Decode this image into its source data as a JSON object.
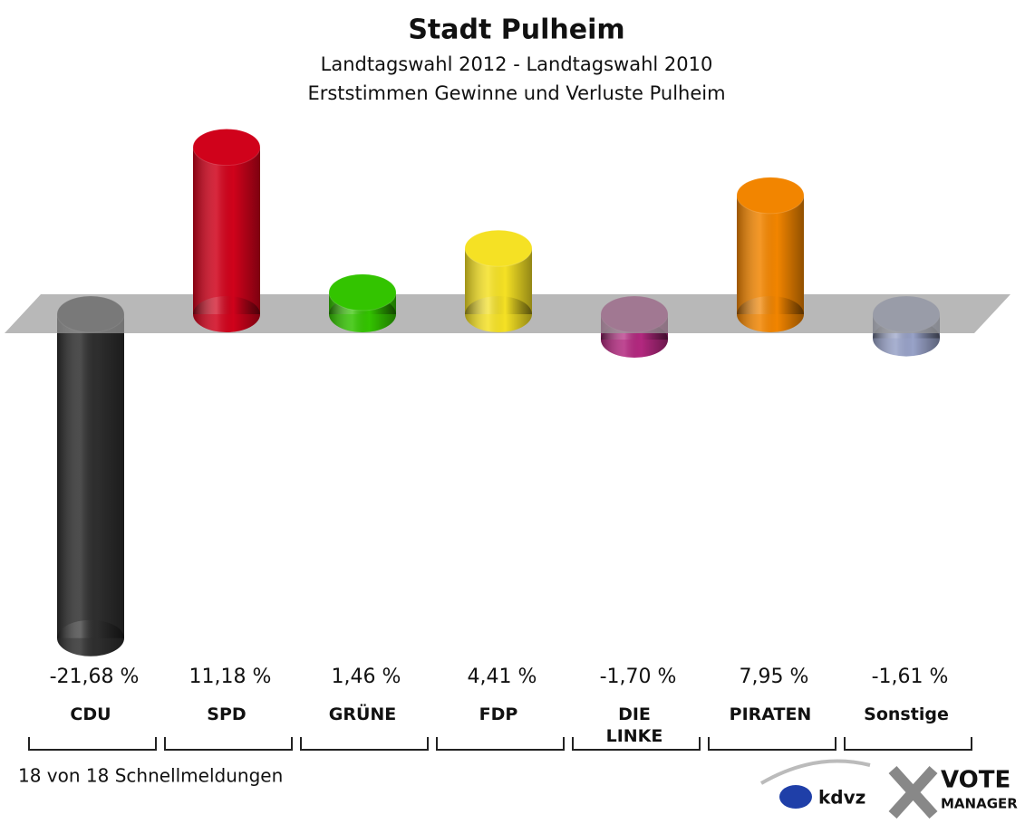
{
  "chart_data": {
    "type": "bar",
    "title": "Stadt Pulheim",
    "subtitle": [
      "Landtagswahl 2012 - Landtagswahl 2010",
      "Erststimmen Gewinne und Verluste Pulheim"
    ],
    "categories": [
      "CDU",
      "SPD",
      "GRÜNE",
      "FDP",
      "DIE\nLINKE",
      "PIRATEN",
      "Sonstige"
    ],
    "values": [
      -21.68,
      11.18,
      1.46,
      4.41,
      -1.7,
      7.95,
      -1.61
    ],
    "value_labels": [
      "-21,68 %",
      "11,18 %",
      "1,46 %",
      "4,41 %",
      "-1,70 %",
      "7,95 %",
      "-1,61 %"
    ],
    "colors": [
      "#2e2e2e",
      "#d0021b",
      "#33c400",
      "#f5e124",
      "#b3287f",
      "#f28500",
      "#98a2c8"
    ],
    "note": "18 von 18 Schnellmeldungen",
    "logo": [
      "kdvz",
      "VOTE",
      "MANAGER"
    ]
  }
}
